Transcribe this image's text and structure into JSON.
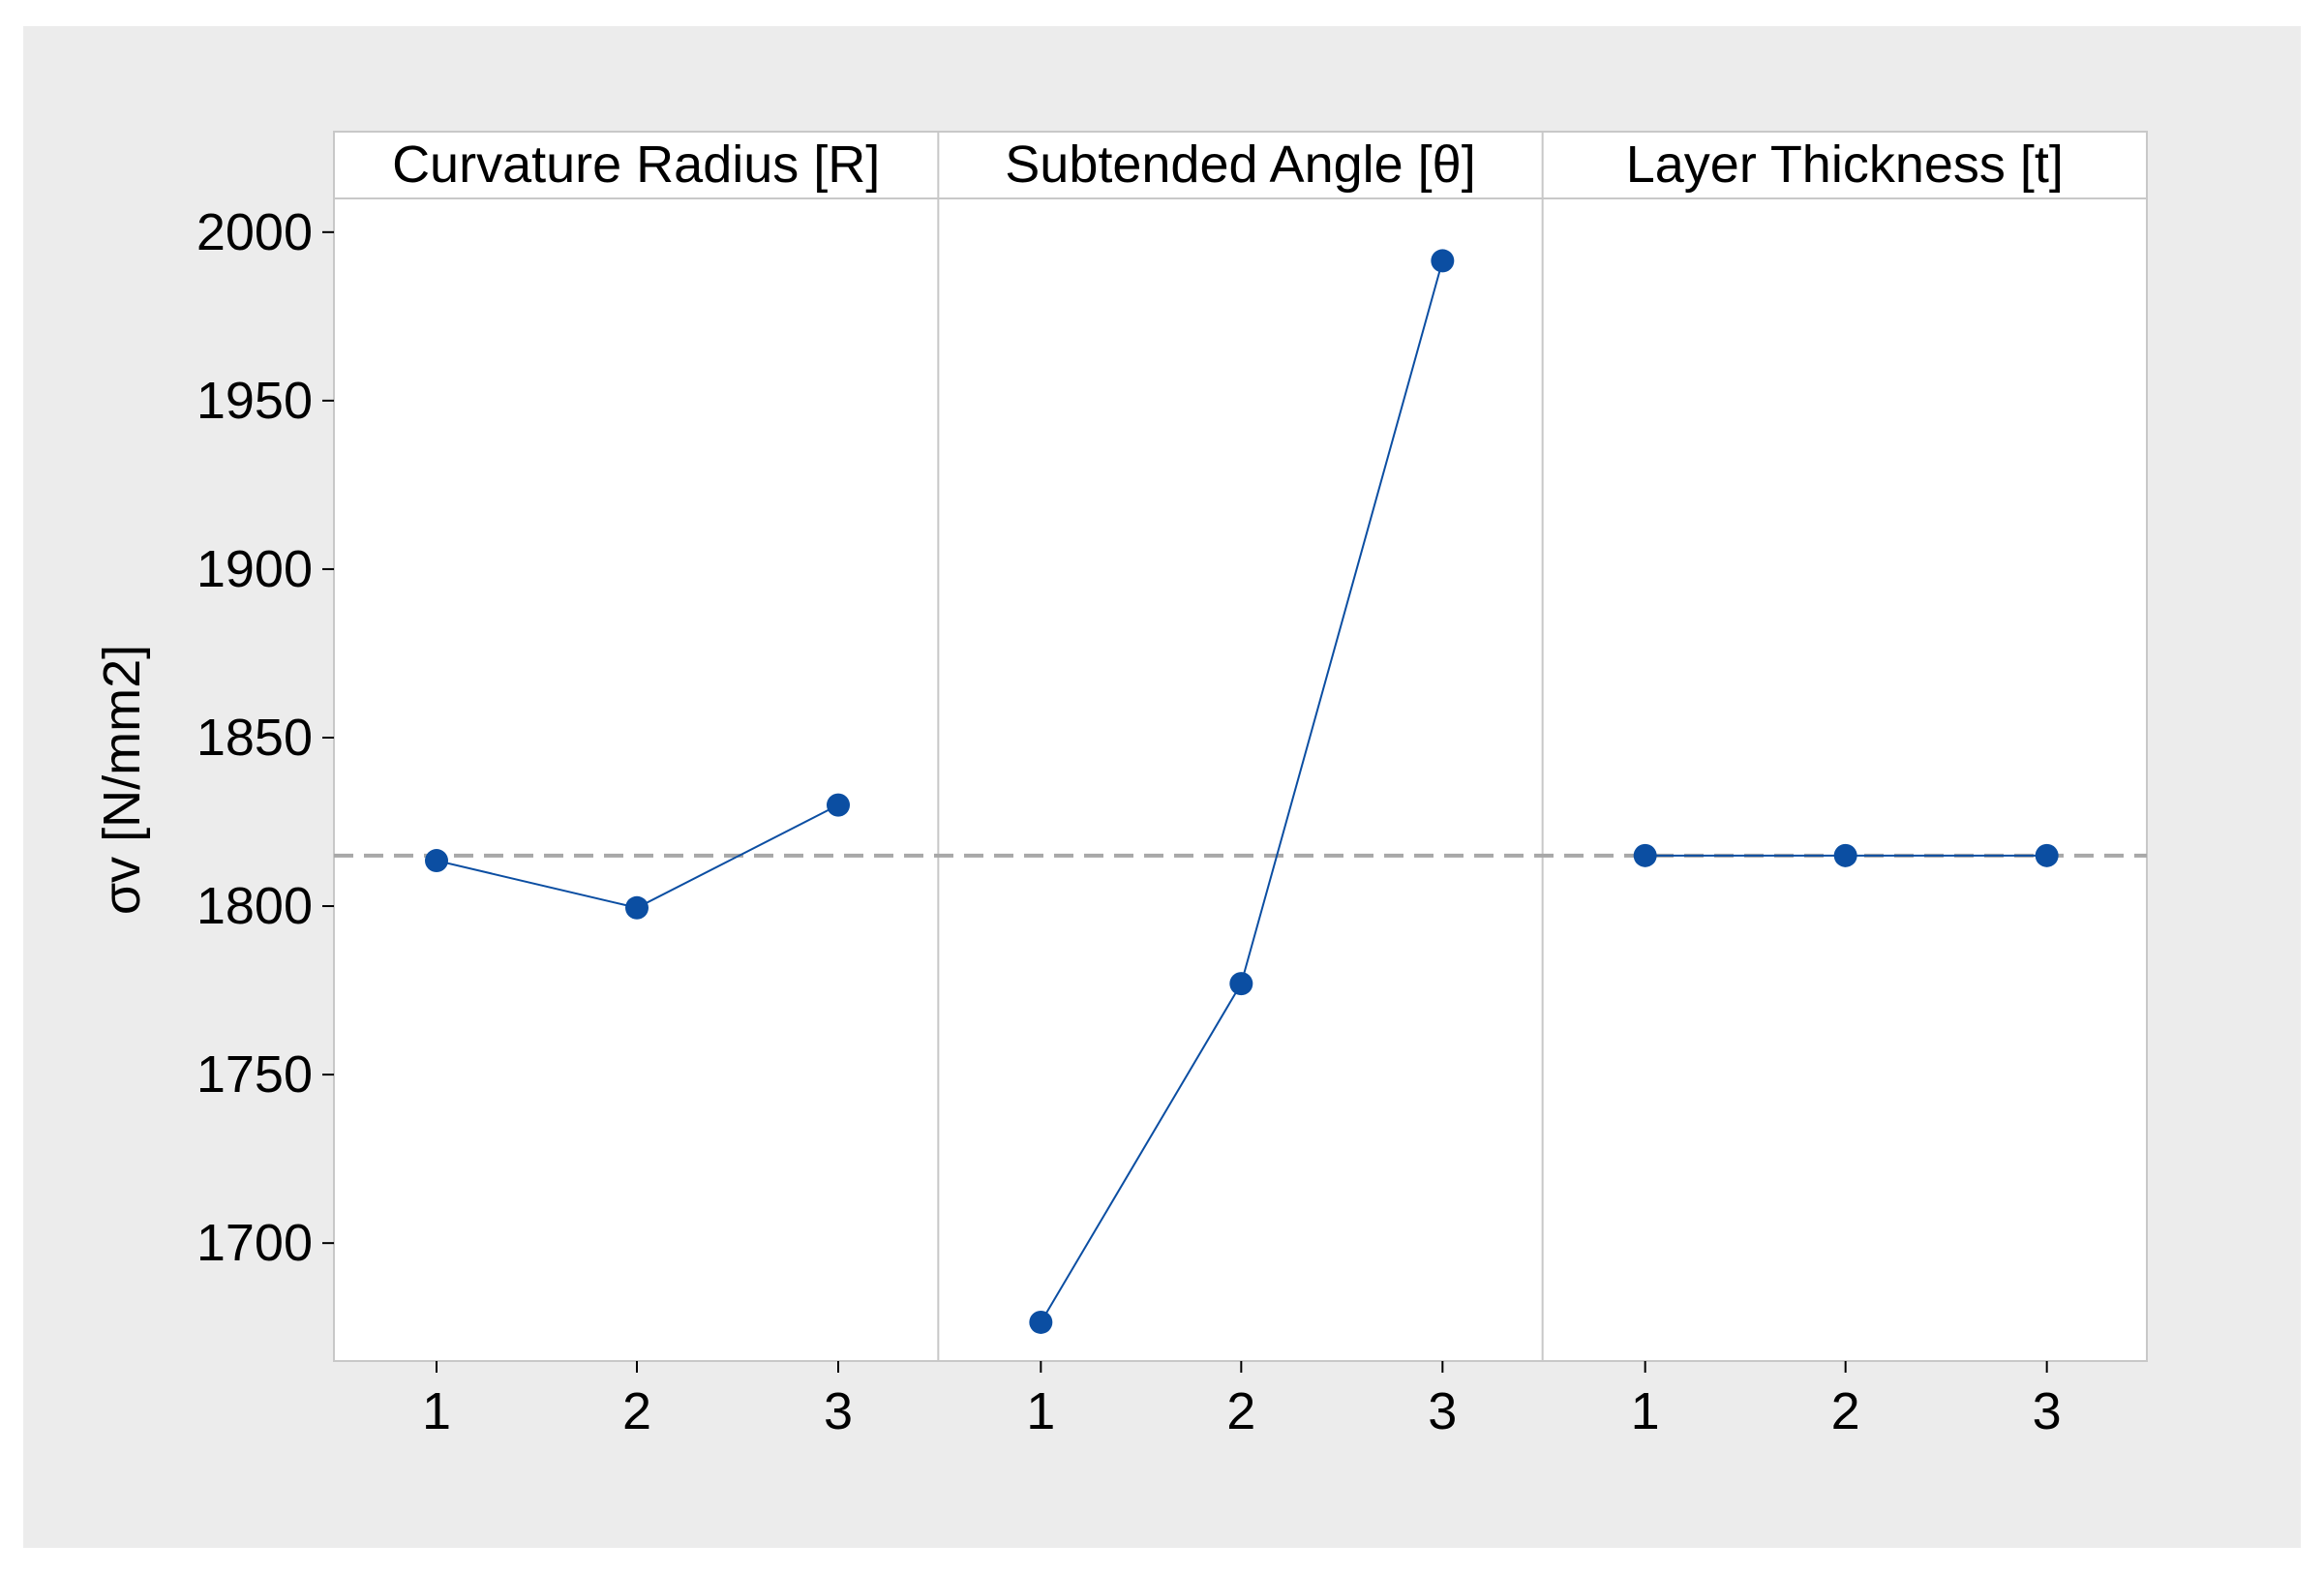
{
  "chart_data": {
    "type": "line",
    "title": "",
    "ylabel": "σv [N/mm2]",
    "xlabel": "",
    "ylim": [
      1665,
      2010
    ],
    "yticks": [
      1700,
      1750,
      1800,
      1850,
      1900,
      1950,
      2000
    ],
    "mean_line": 1815,
    "grid": false,
    "legend": "none",
    "panels": [
      {
        "name": "Curvature Radius [R]",
        "categories": [
          "1",
          "2",
          "3"
        ],
        "values": [
          1813.5,
          1799.5,
          1830
        ]
      },
      {
        "name": "Subtended Angle [θ]",
        "categories": [
          "1",
          "2",
          "3"
        ],
        "values": [
          1676.5,
          1777,
          1991.5
        ]
      },
      {
        "name": "Layer Thickness [t]",
        "categories": [
          "1",
          "2",
          "3"
        ],
        "values": [
          1815,
          1815,
          1815
        ]
      }
    ],
    "colors": {
      "series": "#0b4ea2",
      "mean_line": "#a8a8a8",
      "panel_border": "#c8c8c8",
      "background": "#ececec",
      "plot_background": "#ffffff"
    }
  }
}
